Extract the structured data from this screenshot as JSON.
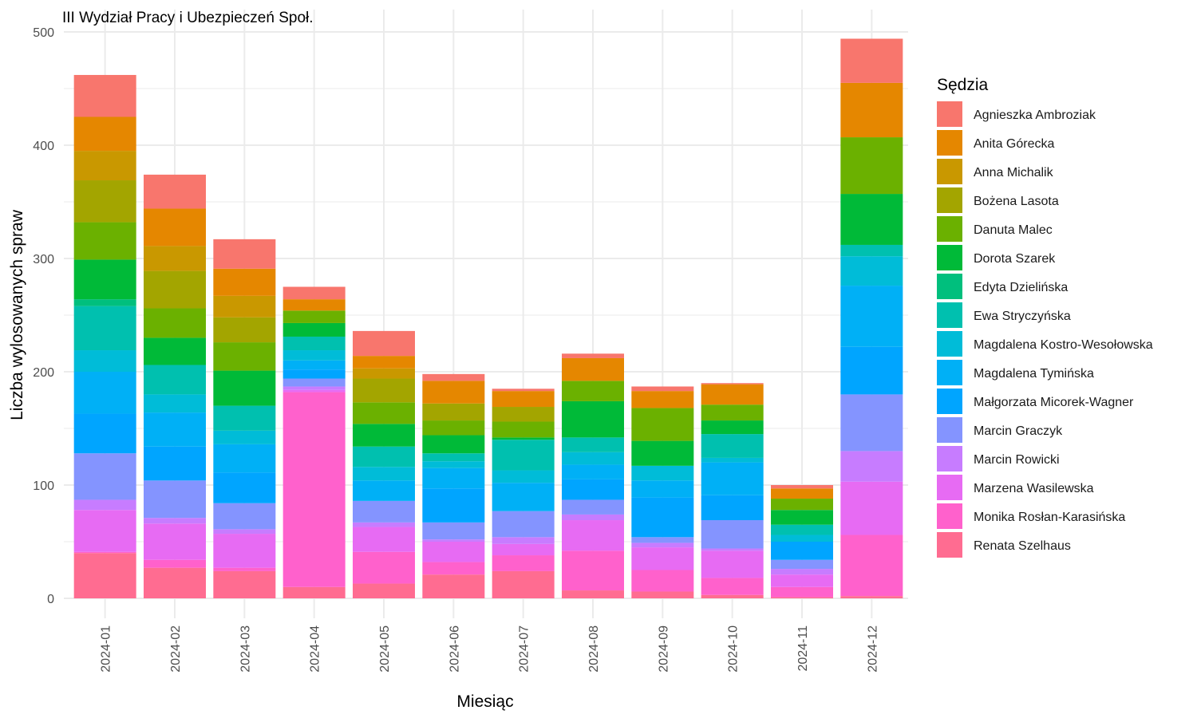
{
  "chart_data": {
    "type": "bar",
    "stacked": true,
    "title": "III Wydział Pracy i Ubezpieczeń Społ.",
    "xlabel": "Miesiąc",
    "ylabel": "Liczba wylosowanych spraw",
    "ylim": [
      0,
      500
    ],
    "yticks": [
      0,
      100,
      200,
      300,
      400,
      500
    ],
    "grid": true,
    "legend": {
      "title": "Sędzia",
      "position": "right"
    },
    "categories": [
      "2024-01",
      "2024-02",
      "2024-03",
      "2024-04",
      "2024-05",
      "2024-06",
      "2024-07",
      "2024-08",
      "2024-09",
      "2024-10",
      "2024-11",
      "2024-12"
    ],
    "series": [
      {
        "name": "Agnieszka Ambroziak",
        "color": "#F8766D",
        "values": [
          37,
          30,
          26,
          11,
          22,
          6,
          2,
          4,
          4,
          1,
          3,
          39
        ]
      },
      {
        "name": "Anita Górecka",
        "color": "#E58700",
        "values": [
          30,
          33,
          24,
          10,
          11,
          20,
          14,
          20,
          15,
          18,
          9,
          48
        ]
      },
      {
        "name": "Anna Michalik",
        "color": "#C99800",
        "values": [
          26,
          22,
          19,
          0,
          9,
          0,
          0,
          0,
          0,
          0,
          0,
          0
        ]
      },
      {
        "name": "Bożena Lasota",
        "color": "#A3A500",
        "values": [
          37,
          33,
          22,
          0,
          21,
          15,
          13,
          0,
          0,
          0,
          0,
          0
        ]
      },
      {
        "name": "Danuta Malec",
        "color": "#6BB100",
        "values": [
          33,
          26,
          25,
          11,
          19,
          13,
          14,
          18,
          29,
          14,
          10,
          50
        ]
      },
      {
        "name": "Dorota Szarek",
        "color": "#00BA38",
        "values": [
          35,
          24,
          31,
          12,
          20,
          16,
          2,
          32,
          22,
          12,
          13,
          45
        ]
      },
      {
        "name": "Edyta Dzielińska",
        "color": "#00BF7D",
        "values": [
          6,
          0,
          0,
          0,
          0,
          0,
          0,
          0,
          0,
          0,
          0,
          0
        ]
      },
      {
        "name": "Ewa Stryczyńska",
        "color": "#00C0AF",
        "values": [
          39,
          26,
          22,
          12,
          18,
          7,
          27,
          13,
          0,
          21,
          9,
          10
        ]
      },
      {
        "name": "Magdalena Kostro-Wesołowska",
        "color": "#00BCD8",
        "values": [
          19,
          16,
          12,
          9,
          12,
          6,
          11,
          11,
          13,
          4,
          6,
          26
        ]
      },
      {
        "name": "Magdalena Tymińska",
        "color": "#00B0F6",
        "values": [
          37,
          30,
          25,
          8,
          18,
          18,
          25,
          13,
          15,
          29,
          0,
          54
        ]
      },
      {
        "name": "Małgorzata Micorek-Wagner",
        "color": "#00A5FF",
        "values": [
          35,
          30,
          27,
          8,
          0,
          30,
          0,
          18,
          35,
          22,
          16,
          42
        ]
      },
      {
        "name": "Marcin Graczyk",
        "color": "#7CAE00",
        "values": [
          0,
          0,
          0,
          0,
          0,
          0,
          0,
          0,
          0,
          0,
          0,
          0
        ]
      },
      {
        "name": "Marcin Graczyk",
        "color": "#8494FF",
        "values": [
          41,
          33,
          23,
          7,
          19,
          15,
          23,
          13,
          5,
          25,
          8,
          50
        ]
      },
      {
        "name": "Marcin Rowicki",
        "color": "#C77CFF",
        "values": [
          9,
          5,
          4,
          3,
          4,
          2,
          6,
          5,
          4,
          2,
          5,
          27
        ]
      },
      {
        "name": "Marzena Wasilewska",
        "color": "#E76BF3",
        "values": [
          37,
          32,
          30,
          2,
          22,
          18,
          10,
          27,
          20,
          24,
          11,
          47
        ]
      },
      {
        "name": "Monika Rosłan-Karasińska",
        "color": "#FF61CC",
        "values": [
          1,
          7,
          3,
          172,
          28,
          11,
          14,
          35,
          19,
          15,
          9,
          54
        ]
      },
      {
        "name": "Renata Szelhaus",
        "color": "#FF6C91",
        "values": [
          40,
          27,
          24,
          10,
          13,
          21,
          24,
          7,
          6,
          3,
          1,
          2
        ]
      }
    ]
  }
}
